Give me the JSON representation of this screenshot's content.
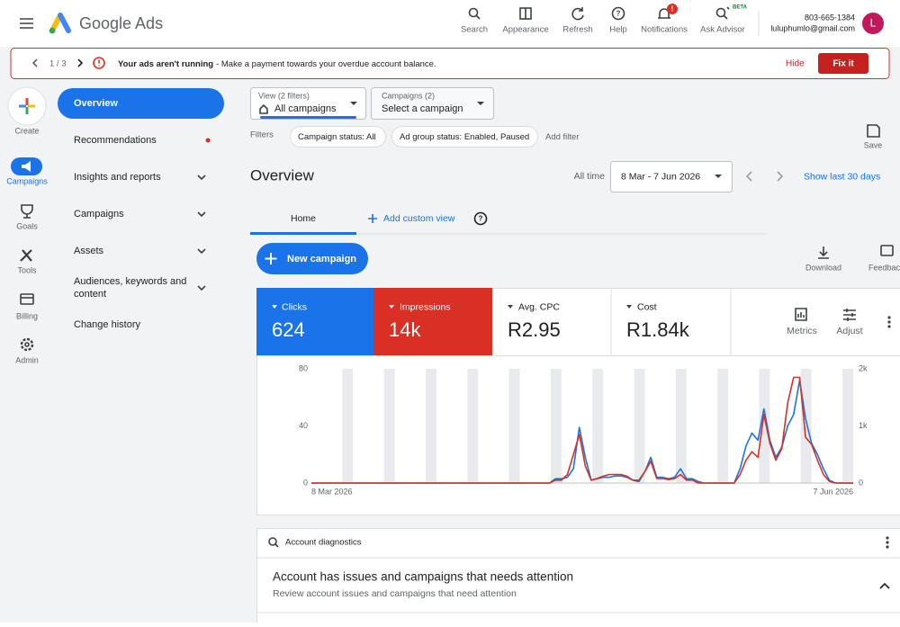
{
  "header": {
    "product": "Google Ads",
    "tools": [
      "Search",
      "Appearance",
      "Refresh",
      "Help",
      "Notifications",
      "Ask Advisor"
    ],
    "beta": "BETA",
    "notification_badge": "!",
    "phone": "803-665-1384",
    "email": "luluphumlo@gmail.com",
    "avatar": "L"
  },
  "alert": {
    "pager": "1 / 3",
    "title": "Your ads aren't running",
    "message": "- Make a payment towards your overdue account balance.",
    "hide": "Hide",
    "fix": "Fix it"
  },
  "rail": {
    "create": "Create",
    "items": [
      "Campaigns",
      "Goals",
      "Tools",
      "Billing",
      "Admin"
    ]
  },
  "nav": {
    "items": [
      "Overview",
      "Recommendations",
      "Insights and reports",
      "Campaigns",
      "Assets",
      "Audiences, keywords and",
      "content",
      "Change history"
    ]
  },
  "filters": {
    "view_label": "View (2 filters)",
    "view_value": "All campaigns",
    "campaigns_label": "Campaigns (2)",
    "campaigns_value": "Select a campaign",
    "filters_label": "Filters",
    "chips": [
      "Campaign status: All",
      "Ad group status: Enabled, Paused"
    ],
    "add_filter": "Add filter",
    "save": "Save"
  },
  "overview": {
    "title": "Overview",
    "range_label": "All time",
    "range": "8 Mar - 7 Jun 2026",
    "show_last": "Show last 30 days",
    "tab": "Home",
    "add_view": "Add custom view",
    "new_campaign": "New campaign",
    "download": "Download",
    "feedback": "Feedback"
  },
  "metrics": [
    {
      "value": "624"
    },
    {
      "value": "14k"
    },
    {
      "name": "Avg. CPC",
      "value": "R2.95"
    },
    {
      "name": "Cost",
      "value": "R1.84k"
    }
  ],
  "metric_tools": [
    "Metrics",
    "Adjust"
  ],
  "chart_data": {
    "type": "line",
    "categories": [
      "8 Mar 2026",
      null,
      null,
      null,
      null,
      null,
      null,
      null,
      null,
      null,
      null,
      null,
      null,
      null,
      null,
      null,
      null,
      null,
      null,
      null,
      null,
      null,
      null,
      null,
      null,
      null,
      null,
      null,
      null,
      null,
      null,
      null,
      null,
      null,
      null,
      null,
      null,
      null,
      null,
      null,
      null,
      null,
      null,
      null,
      null,
      null,
      null,
      null,
      null,
      null,
      null,
      null,
      null,
      null,
      null,
      null,
      null,
      null,
      null,
      null,
      null,
      null,
      null,
      null,
      null,
      null,
      null,
      null,
      null,
      null,
      null,
      null,
      null,
      null,
      null,
      null,
      null,
      null,
      null,
      null,
      null,
      null,
      null,
      null,
      null,
      null,
      null,
      null,
      null,
      null,
      null,
      "7 Jun 2026"
    ],
    "series": [
      {
        "name": "Clicks",
        "color": "#1a73e8",
        "values": [
          0,
          0,
          0,
          0,
          0,
          0,
          0,
          0,
          0,
          0,
          0,
          0,
          0,
          0,
          0,
          0,
          0,
          0,
          0,
          0,
          0,
          0,
          0,
          0,
          0,
          0,
          0,
          0,
          0,
          0,
          0,
          0,
          0,
          0,
          0,
          0,
          0,
          0,
          0,
          0,
          0,
          3,
          3,
          4,
          10,
          39,
          18,
          2,
          3,
          4,
          4,
          5,
          5,
          4,
          2,
          1,
          8,
          18,
          4,
          4,
          3,
          4,
          10,
          3,
          3,
          1,
          0,
          0,
          0,
          0,
          0,
          0,
          10,
          26,
          35,
          30,
          52,
          30,
          18,
          25,
          40,
          48,
          72,
          45,
          28,
          20,
          10,
          2,
          0,
          0,
          0,
          0
        ]
      },
      {
        "name": "Impressions",
        "color": "#d93025",
        "axis": "y2",
        "values": [
          0,
          0,
          0,
          0,
          0,
          0,
          0,
          0,
          0,
          0,
          0,
          0,
          0,
          0,
          0,
          0,
          0,
          0,
          0,
          0,
          0,
          0,
          0,
          0,
          0,
          0,
          0,
          0,
          0,
          0,
          0,
          0,
          0,
          0,
          0,
          0,
          0,
          0,
          0,
          0,
          0,
          50,
          50,
          150,
          500,
          850,
          300,
          50,
          80,
          120,
          150,
          150,
          150,
          120,
          50,
          50,
          200,
          380,
          80,
          80,
          60,
          80,
          150,
          50,
          50,
          0,
          0,
          0,
          0,
          0,
          0,
          0,
          150,
          400,
          550,
          450,
          1200,
          700,
          400,
          600,
          1400,
          1850,
          1850,
          800,
          680,
          400,
          150,
          30,
          0,
          0,
          0,
          0
        ]
      }
    ],
    "ylim": [
      0,
      80
    ],
    "yticks": [
      0,
      40,
      80
    ],
    "y2lim": [
      0,
      2000
    ],
    "y2ticks": [
      0,
      {
        "value": 1000,
        "label": "1k"
      },
      {
        "value": 2000,
        "label": "2k"
      }
    ]
  },
  "diagnostics": {
    "label": "Account diagnostics",
    "title": "Account has issues and campaigns that needs attention",
    "subtitle": "Review account issues and campaigns that need attention"
  }
}
